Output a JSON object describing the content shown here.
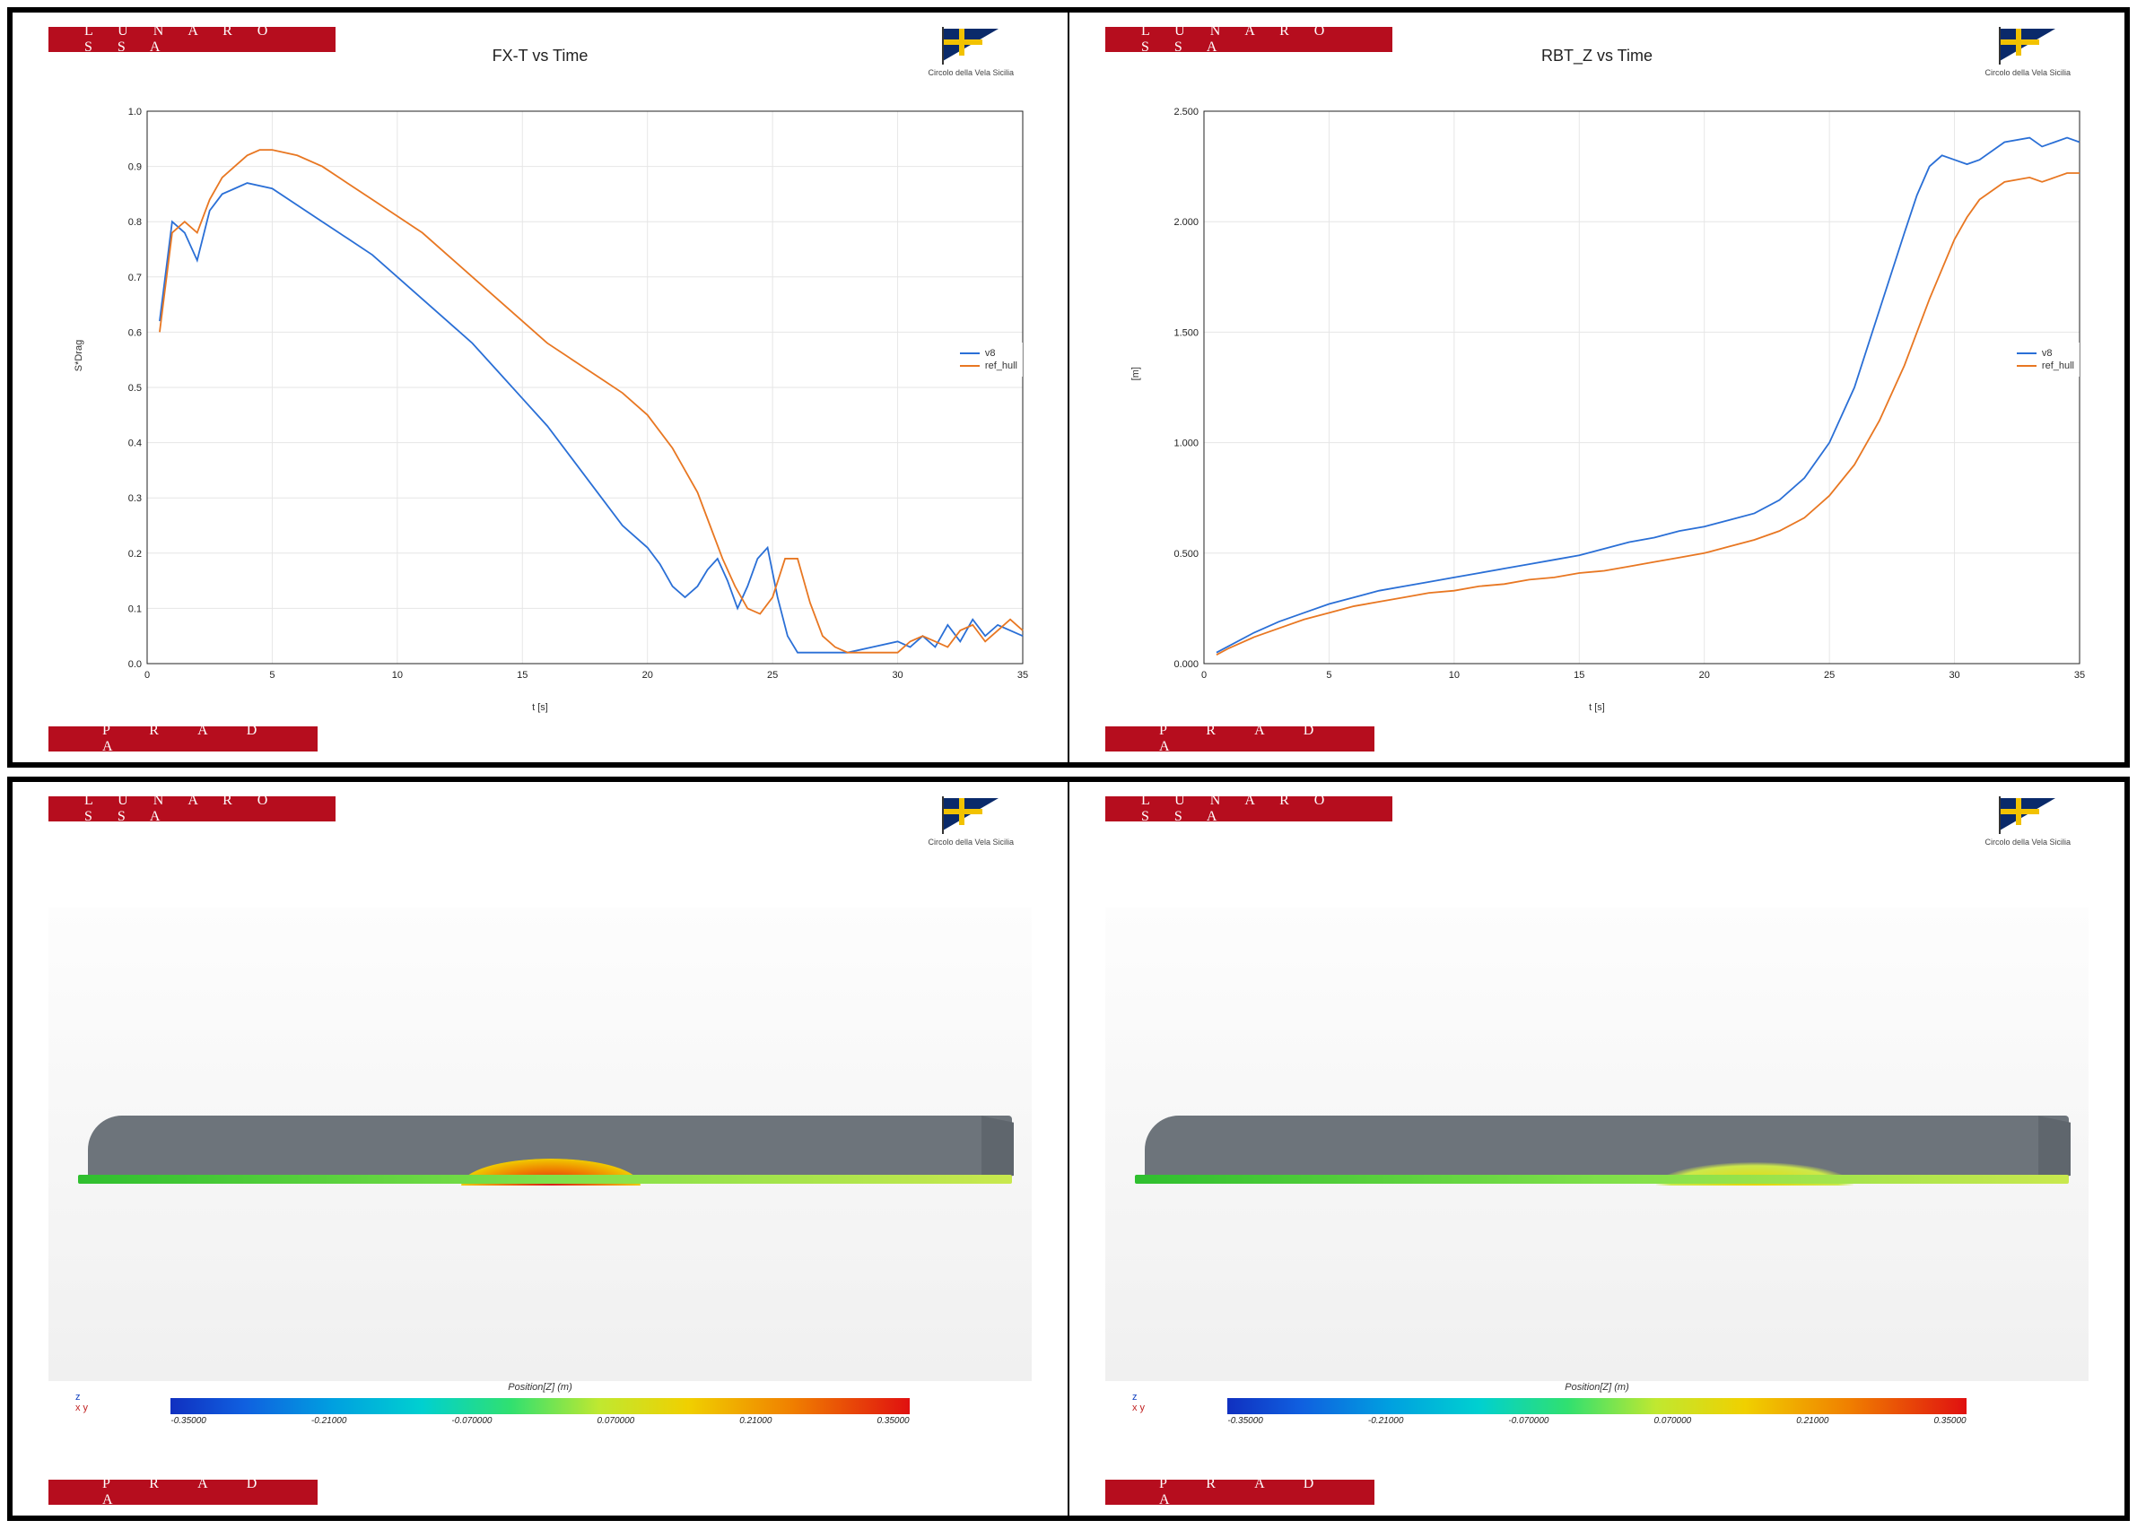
{
  "branding": {
    "top_banner": "L U N A   R O S S A",
    "bottom_banner": "P R A D A",
    "logo_caption": "Circolo della Vela Sicilia",
    "banner_bg": "#b60d1e",
    "banner_fg": "#ffffff",
    "flag_bg": "#0a2a6a",
    "flag_cross": "#f2c200"
  },
  "chart_left": {
    "type": "line",
    "title": "FX-T vs Time",
    "xlabel": "t [s]",
    "ylabel": "S*Drag",
    "xlim": [
      0,
      35
    ],
    "ylim": [
      0.0,
      1.0
    ],
    "xticks": [
      0,
      5,
      10,
      15,
      20,
      25,
      30,
      35
    ],
    "yticks": [
      0.0,
      0.1,
      0.2,
      0.3,
      0.4,
      0.5,
      0.6,
      0.7,
      0.8,
      0.9,
      1.0
    ],
    "grid_color": "#e6e6e6",
    "background_color": "#ffffff",
    "series": [
      {
        "name": "v8",
        "color": "#2a6fd6",
        "xy": [
          [
            0.5,
            0.62
          ],
          [
            1,
            0.8
          ],
          [
            1.5,
            0.78
          ],
          [
            2,
            0.73
          ],
          [
            2.5,
            0.82
          ],
          [
            3,
            0.85
          ],
          [
            3.5,
            0.86
          ],
          [
            4,
            0.87
          ],
          [
            5,
            0.86
          ],
          [
            6,
            0.83
          ],
          [
            7,
            0.8
          ],
          [
            8,
            0.77
          ],
          [
            9,
            0.74
          ],
          [
            10,
            0.7
          ],
          [
            11,
            0.66
          ],
          [
            12,
            0.62
          ],
          [
            13,
            0.58
          ],
          [
            14,
            0.53
          ],
          [
            15,
            0.48
          ],
          [
            16,
            0.43
          ],
          [
            17,
            0.37
          ],
          [
            18,
            0.31
          ],
          [
            19,
            0.25
          ],
          [
            20,
            0.21
          ],
          [
            20.5,
            0.18
          ],
          [
            21,
            0.14
          ],
          [
            21.5,
            0.12
          ],
          [
            22,
            0.14
          ],
          [
            22.4,
            0.17
          ],
          [
            22.8,
            0.19
          ],
          [
            23.2,
            0.15
          ],
          [
            23.6,
            0.1
          ],
          [
            24,
            0.14
          ],
          [
            24.4,
            0.19
          ],
          [
            24.8,
            0.21
          ],
          [
            25.2,
            0.12
          ],
          [
            25.6,
            0.05
          ],
          [
            26,
            0.02
          ],
          [
            27,
            0.02
          ],
          [
            28,
            0.02
          ],
          [
            29,
            0.03
          ],
          [
            30,
            0.04
          ],
          [
            30.5,
            0.03
          ],
          [
            31,
            0.05
          ],
          [
            31.5,
            0.03
          ],
          [
            32,
            0.07
          ],
          [
            32.5,
            0.04
          ],
          [
            33,
            0.08
          ],
          [
            33.5,
            0.05
          ],
          [
            34,
            0.07
          ],
          [
            34.5,
            0.06
          ],
          [
            35,
            0.05
          ]
        ]
      },
      {
        "name": "ref_hull",
        "color": "#e87722",
        "xy": [
          [
            0.5,
            0.6
          ],
          [
            1,
            0.78
          ],
          [
            1.5,
            0.8
          ],
          [
            2,
            0.78
          ],
          [
            2.5,
            0.84
          ],
          [
            3,
            0.88
          ],
          [
            3.5,
            0.9
          ],
          [
            4,
            0.92
          ],
          [
            4.5,
            0.93
          ],
          [
            5,
            0.93
          ],
          [
            6,
            0.92
          ],
          [
            7,
            0.9
          ],
          [
            8,
            0.87
          ],
          [
            9,
            0.84
          ],
          [
            10,
            0.81
          ],
          [
            11,
            0.78
          ],
          [
            12,
            0.74
          ],
          [
            13,
            0.7
          ],
          [
            14,
            0.66
          ],
          [
            15,
            0.62
          ],
          [
            16,
            0.58
          ],
          [
            17,
            0.55
          ],
          [
            18,
            0.52
          ],
          [
            19,
            0.49
          ],
          [
            20,
            0.45
          ],
          [
            21,
            0.39
          ],
          [
            22,
            0.31
          ],
          [
            22.5,
            0.25
          ],
          [
            23,
            0.19
          ],
          [
            23.5,
            0.14
          ],
          [
            24,
            0.1
          ],
          [
            24.5,
            0.09
          ],
          [
            25,
            0.12
          ],
          [
            25.5,
            0.19
          ],
          [
            26,
            0.19
          ],
          [
            26.5,
            0.11
          ],
          [
            27,
            0.05
          ],
          [
            27.5,
            0.03
          ],
          [
            28,
            0.02
          ],
          [
            29,
            0.02
          ],
          [
            30,
            0.02
          ],
          [
            30.5,
            0.04
          ],
          [
            31,
            0.05
          ],
          [
            31.5,
            0.04
          ],
          [
            32,
            0.03
          ],
          [
            32.5,
            0.06
          ],
          [
            33,
            0.07
          ],
          [
            33.5,
            0.04
          ],
          [
            34,
            0.06
          ],
          [
            34.5,
            0.08
          ],
          [
            35,
            0.06
          ]
        ]
      }
    ]
  },
  "chart_right": {
    "type": "line",
    "title": "RBT_Z vs Time",
    "xlabel": "t [s]",
    "ylabel": "[m]",
    "xlim": [
      0,
      35
    ],
    "ylim": [
      0.0,
      2.5
    ],
    "xticks": [
      0,
      5,
      10,
      15,
      20,
      25,
      30,
      35
    ],
    "yticks": [
      0.0,
      0.5,
      1.0,
      1.5,
      2.0,
      2.5
    ],
    "grid_color": "#e6e6e6",
    "background_color": "#ffffff",
    "series": [
      {
        "name": "v8",
        "color": "#2a6fd6",
        "xy": [
          [
            0.5,
            0.05
          ],
          [
            1,
            0.08
          ],
          [
            2,
            0.14
          ],
          [
            3,
            0.19
          ],
          [
            4,
            0.23
          ],
          [
            5,
            0.27
          ],
          [
            6,
            0.3
          ],
          [
            7,
            0.33
          ],
          [
            8,
            0.35
          ],
          [
            9,
            0.37
          ],
          [
            10,
            0.39
          ],
          [
            11,
            0.41
          ],
          [
            12,
            0.43
          ],
          [
            13,
            0.45
          ],
          [
            14,
            0.47
          ],
          [
            15,
            0.49
          ],
          [
            16,
            0.52
          ],
          [
            17,
            0.55
          ],
          [
            18,
            0.57
          ],
          [
            19,
            0.6
          ],
          [
            20,
            0.62
          ],
          [
            21,
            0.65
          ],
          [
            22,
            0.68
          ],
          [
            23,
            0.74
          ],
          [
            24,
            0.84
          ],
          [
            25,
            1.0
          ],
          [
            26,
            1.25
          ],
          [
            27,
            1.6
          ],
          [
            28,
            1.95
          ],
          [
            28.5,
            2.12
          ],
          [
            29,
            2.25
          ],
          [
            29.5,
            2.3
          ],
          [
            30,
            2.28
          ],
          [
            30.5,
            2.26
          ],
          [
            31,
            2.28
          ],
          [
            32,
            2.36
          ],
          [
            33,
            2.38
          ],
          [
            33.5,
            2.34
          ],
          [
            34,
            2.36
          ],
          [
            34.5,
            2.38
          ],
          [
            35,
            2.36
          ]
        ]
      },
      {
        "name": "ref_hull",
        "color": "#e87722",
        "xy": [
          [
            0.5,
            0.04
          ],
          [
            1,
            0.07
          ],
          [
            2,
            0.12
          ],
          [
            3,
            0.16
          ],
          [
            4,
            0.2
          ],
          [
            5,
            0.23
          ],
          [
            6,
            0.26
          ],
          [
            7,
            0.28
          ],
          [
            8,
            0.3
          ],
          [
            9,
            0.32
          ],
          [
            10,
            0.33
          ],
          [
            11,
            0.35
          ],
          [
            12,
            0.36
          ],
          [
            13,
            0.38
          ],
          [
            14,
            0.39
          ],
          [
            15,
            0.41
          ],
          [
            16,
            0.42
          ],
          [
            17,
            0.44
          ],
          [
            18,
            0.46
          ],
          [
            19,
            0.48
          ],
          [
            20,
            0.5
          ],
          [
            21,
            0.53
          ],
          [
            22,
            0.56
          ],
          [
            23,
            0.6
          ],
          [
            24,
            0.66
          ],
          [
            25,
            0.76
          ],
          [
            26,
            0.9
          ],
          [
            27,
            1.1
          ],
          [
            28,
            1.35
          ],
          [
            29,
            1.65
          ],
          [
            30,
            1.92
          ],
          [
            30.5,
            2.02
          ],
          [
            31,
            2.1
          ],
          [
            32,
            2.18
          ],
          [
            33,
            2.2
          ],
          [
            33.5,
            2.18
          ],
          [
            34,
            2.2
          ],
          [
            34.5,
            2.22
          ],
          [
            35,
            2.22
          ]
        ]
      }
    ]
  },
  "cfd": {
    "scale_title": "Position[Z] (m)",
    "scale_ticks": [
      "-0.35000",
      "-0.21000",
      "-0.070000",
      "0.070000",
      "0.21000",
      "0.35000"
    ],
    "hull_color": "#6d747b",
    "water_gradient": [
      "#2fbf2f",
      "#7fe04a",
      "#c9e84e"
    ],
    "left_bulge": "red-orange",
    "right_bulge": "yellow-green",
    "triad_z": "z",
    "triad_xy": "x  y"
  }
}
